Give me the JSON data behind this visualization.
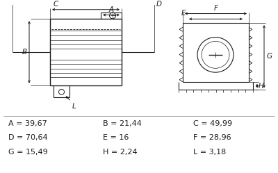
{
  "background_color": "#ffffff",
  "line_color": "#1a1a1a",
  "text_rows": [
    [
      "A = 39,67",
      "B = 21,44",
      "C = 49,99"
    ],
    [
      "D = 70,64",
      "E = 16",
      "F = 28,96"
    ],
    [
      "G = 15,49",
      "H = 2,24",
      "L = 3,18"
    ]
  ],
  "font_size_label": 8.0
}
